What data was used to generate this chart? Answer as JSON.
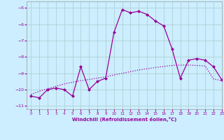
{
  "xlabel": "Windchill (Refroidissement éolien,°C)",
  "bg_color": "#cceeff",
  "grid_color": "#aacccc",
  "line_color": "#990099",
  "xlim": [
    -0.5,
    23
  ],
  "ylim": [
    -11.2,
    -4.6
  ],
  "yticks": [
    -11,
    -10,
    -9,
    -8,
    -7,
    -6,
    -5
  ],
  "xticks": [
    0,
    1,
    2,
    3,
    4,
    5,
    6,
    7,
    8,
    9,
    10,
    11,
    12,
    13,
    14,
    15,
    16,
    17,
    18,
    19,
    20,
    21,
    22,
    23
  ],
  "hours": [
    0,
    1,
    2,
    3,
    4,
    5,
    6,
    7,
    8,
    9,
    10,
    11,
    12,
    13,
    14,
    15,
    16,
    17,
    18,
    19,
    20,
    21,
    22,
    23
  ],
  "windchill": [
    -10.4,
    -10.5,
    -10.0,
    -9.9,
    -10.0,
    -10.4,
    -8.6,
    -10.0,
    -9.5,
    -9.3,
    -6.5,
    -5.1,
    -5.3,
    -5.2,
    -5.4,
    -5.8,
    -6.1,
    -7.5,
    -9.3,
    -8.2,
    -8.1,
    -8.2,
    -8.6,
    -9.4
  ],
  "temperature": [
    -10.3,
    -10.1,
    -9.95,
    -9.8,
    -9.65,
    -9.55,
    -9.45,
    -9.38,
    -9.3,
    -9.22,
    -9.1,
    -9.0,
    -8.9,
    -8.8,
    -8.72,
    -8.65,
    -8.58,
    -8.52,
    -8.5,
    -8.5,
    -8.52,
    -8.55,
    -9.35,
    -9.45
  ]
}
